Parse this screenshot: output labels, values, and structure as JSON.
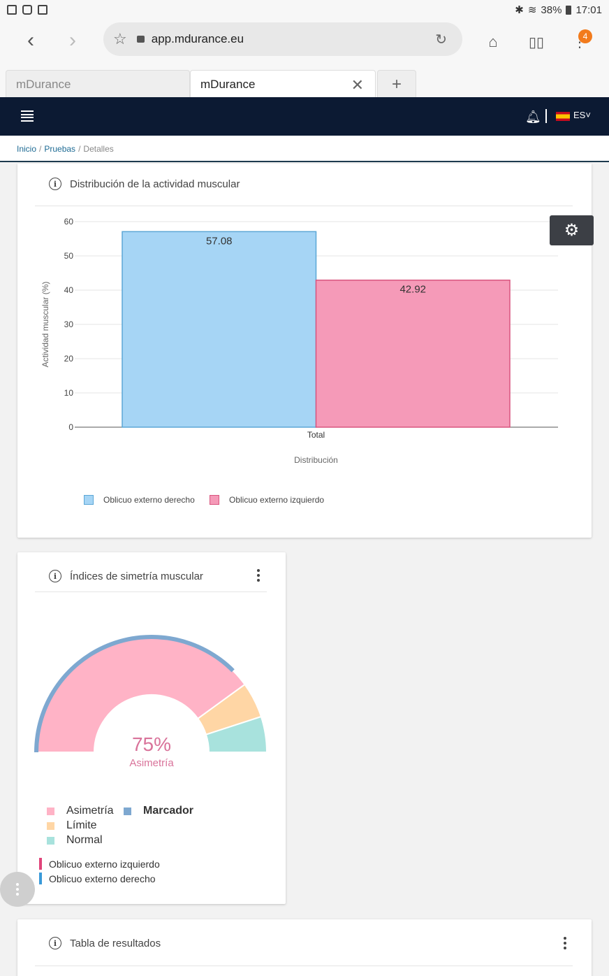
{
  "status_bar": {
    "bluetooth": "✱",
    "wifi": "≋",
    "battery": "38%",
    "time": "17:01"
  },
  "browser": {
    "url": "app.mdurance.eu",
    "tabs": [
      {
        "label": "mDurance",
        "active": false
      },
      {
        "label": "mDurance",
        "active": true
      }
    ],
    "new_tab": "+",
    "notifications_count": "4"
  },
  "header": {
    "language": "ES˅"
  },
  "breadcrumb": {
    "home": "Inicio",
    "tests": "Pruebas",
    "current": "Detalles",
    "sep": "/"
  },
  "distribution_card": {
    "title": "Distribución de la actividad muscular",
    "legend": [
      {
        "label": "Oblicuo externo derecho",
        "color": "#a6d5f5",
        "border": "#5ba7d6"
      },
      {
        "label": "Oblicuo externo izquierdo",
        "color": "#f59ab8",
        "border": "#d9557f"
      }
    ]
  },
  "chart_data": {
    "type": "bar",
    "categories": [
      "Total"
    ],
    "series": [
      {
        "name": "Oblicuo externo derecho",
        "values": [
          57.08
        ],
        "color": "#a6d5f5"
      },
      {
        "name": "Oblicuo externo izquierdo",
        "values": [
          42.92
        ],
        "color": "#f59ab8"
      }
    ],
    "data_labels": [
      "57.08",
      "42.92"
    ],
    "xlabel": "Distribución",
    "ylabel": "Actividad muscular (%)",
    "ylim": [
      0,
      60
    ],
    "yticks": [
      0,
      10,
      20,
      30,
      40,
      50,
      60
    ],
    "grid": true,
    "legend_position": "bottom-left"
  },
  "symmetry_card": {
    "title": "Índices de simetría muscular",
    "gauge": {
      "value_label": "75%",
      "caption": "Asimetría",
      "value": 75,
      "segments": [
        {
          "name": "Asimetría",
          "fraction": 0.8,
          "color": "#ffb3c6"
        },
        {
          "name": "Límite",
          "fraction": 0.1,
          "color": "#ffd6a5"
        },
        {
          "name": "Normal",
          "fraction": 0.1,
          "color": "#a8e2dd"
        }
      ],
      "marker_fraction": 0.75,
      "marker_color": "#7ea8d0"
    },
    "legend": [
      {
        "label": "Asimetría",
        "color": "#ffb3c6"
      },
      {
        "label": "Límite",
        "color": "#ffd6a5"
      },
      {
        "label": "Normal",
        "color": "#a8e2dd"
      },
      {
        "label": "Marcador",
        "color": "#7ea8d0"
      }
    ],
    "side_legend": [
      {
        "label": "Oblicuo externo izquierdo",
        "color": "#e0447a"
      },
      {
        "label": "Oblicuo externo derecho",
        "color": "#3a9ad9"
      }
    ]
  },
  "results_card": {
    "title": "Tabla de resultados"
  }
}
